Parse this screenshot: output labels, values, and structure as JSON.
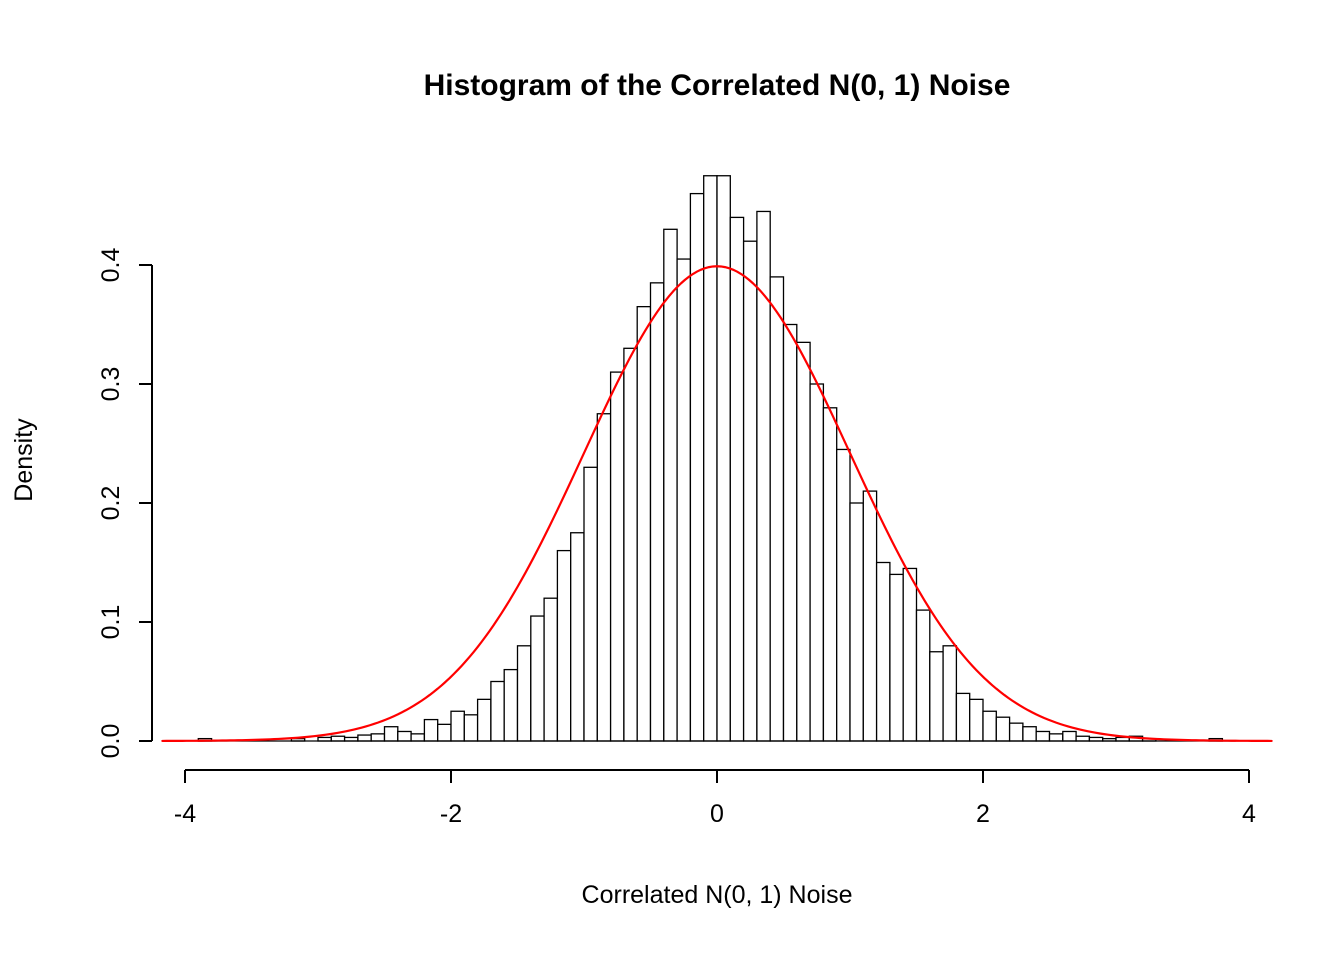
{
  "chart": {
    "title": "Histogram of the Correlated N(0, 1) Noise",
    "xlabel": "Correlated N(0, 1) Noise",
    "ylabel": "Density"
  },
  "chart_data": {
    "type": "bar",
    "subtype": "histogram-with-density-curve",
    "title": "Histogram of the Correlated N(0, 1) Noise",
    "xlabel": "Correlated N(0, 1) Noise",
    "ylabel": "Density",
    "xlim": [
      -4.2,
      4.2
    ],
    "ylim": [
      0,
      0.48
    ],
    "grid": false,
    "legend": false,
    "x_ticks": [
      {
        "value": -4,
        "label": "-4"
      },
      {
        "value": -2,
        "label": "-2"
      },
      {
        "value": 0,
        "label": "0"
      },
      {
        "value": 2,
        "label": "2"
      },
      {
        "value": 4,
        "label": "4"
      }
    ],
    "y_ticks": [
      {
        "value": 0.0,
        "label": "0.0"
      },
      {
        "value": 0.1,
        "label": "0.1"
      },
      {
        "value": 0.2,
        "label": "0.2"
      },
      {
        "value": 0.3,
        "label": "0.3"
      },
      {
        "value": 0.4,
        "label": "0.4"
      }
    ],
    "histogram": {
      "bin_start": -3.9,
      "bin_width": 0.1,
      "bar_fill": "#ffffff",
      "bar_stroke": "#000000",
      "densities": [
        0.002,
        0,
        0,
        0,
        0,
        0,
        0,
        0.002,
        0,
        0.003,
        0.004,
        0.003,
        0.005,
        0.006,
        0.012,
        0.008,
        0.006,
        0.018,
        0.014,
        0.025,
        0.022,
        0.035,
        0.05,
        0.06,
        0.08,
        0.105,
        0.12,
        0.16,
        0.175,
        0.23,
        0.275,
        0.31,
        0.33,
        0.365,
        0.385,
        0.43,
        0.405,
        0.46,
        0.475,
        0.475,
        0.44,
        0.42,
        0.445,
        0.39,
        0.35,
        0.335,
        0.3,
        0.28,
        0.245,
        0.2,
        0.21,
        0.15,
        0.14,
        0.145,
        0.11,
        0.075,
        0.08,
        0.04,
        0.035,
        0.025,
        0.02,
        0.015,
        0.012,
        0.008,
        0.006,
        0.008,
        0.004,
        0.003,
        0.002,
        0.003,
        0.004,
        0.002,
        0,
        0,
        0,
        0,
        0.002,
        0
      ]
    },
    "curve": {
      "name": "normal-pdf",
      "mean": 0,
      "sd": 1,
      "color": "#ff0000",
      "x_range": [
        -4.17,
        4.17
      ]
    }
  }
}
